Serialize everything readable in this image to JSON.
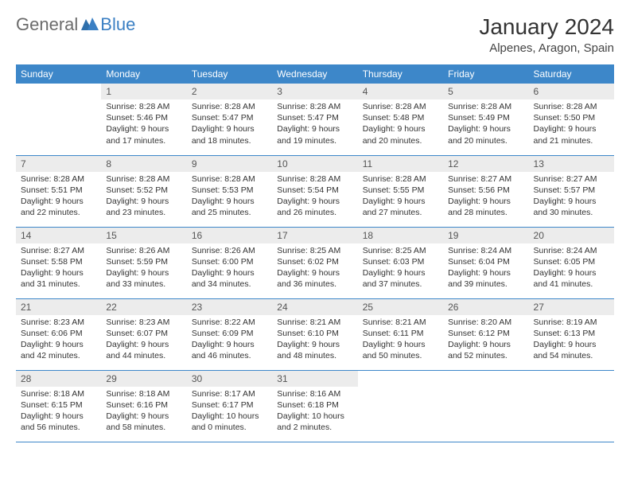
{
  "logo": {
    "part1": "General",
    "part2": "Blue"
  },
  "title": "January 2024",
  "location": "Alpenes, Aragon, Spain",
  "colors": {
    "header_bg": "#3d87c9",
    "header_text": "#ffffff",
    "daynum_bg": "#ececec",
    "border": "#3d87c9",
    "logo_gray": "#6b6b6b",
    "logo_blue": "#3a7fc3"
  },
  "weekdays": [
    "Sunday",
    "Monday",
    "Tuesday",
    "Wednesday",
    "Thursday",
    "Friday",
    "Saturday"
  ],
  "weeks": [
    [
      {
        "num": "",
        "lines": [
          "",
          "",
          "",
          ""
        ]
      },
      {
        "num": "1",
        "lines": [
          "Sunrise: 8:28 AM",
          "Sunset: 5:46 PM",
          "Daylight: 9 hours",
          "and 17 minutes."
        ]
      },
      {
        "num": "2",
        "lines": [
          "Sunrise: 8:28 AM",
          "Sunset: 5:47 PM",
          "Daylight: 9 hours",
          "and 18 minutes."
        ]
      },
      {
        "num": "3",
        "lines": [
          "Sunrise: 8:28 AM",
          "Sunset: 5:47 PM",
          "Daylight: 9 hours",
          "and 19 minutes."
        ]
      },
      {
        "num": "4",
        "lines": [
          "Sunrise: 8:28 AM",
          "Sunset: 5:48 PM",
          "Daylight: 9 hours",
          "and 20 minutes."
        ]
      },
      {
        "num": "5",
        "lines": [
          "Sunrise: 8:28 AM",
          "Sunset: 5:49 PM",
          "Daylight: 9 hours",
          "and 20 minutes."
        ]
      },
      {
        "num": "6",
        "lines": [
          "Sunrise: 8:28 AM",
          "Sunset: 5:50 PM",
          "Daylight: 9 hours",
          "and 21 minutes."
        ]
      }
    ],
    [
      {
        "num": "7",
        "lines": [
          "Sunrise: 8:28 AM",
          "Sunset: 5:51 PM",
          "Daylight: 9 hours",
          "and 22 minutes."
        ]
      },
      {
        "num": "8",
        "lines": [
          "Sunrise: 8:28 AM",
          "Sunset: 5:52 PM",
          "Daylight: 9 hours",
          "and 23 minutes."
        ]
      },
      {
        "num": "9",
        "lines": [
          "Sunrise: 8:28 AM",
          "Sunset: 5:53 PM",
          "Daylight: 9 hours",
          "and 25 minutes."
        ]
      },
      {
        "num": "10",
        "lines": [
          "Sunrise: 8:28 AM",
          "Sunset: 5:54 PM",
          "Daylight: 9 hours",
          "and 26 minutes."
        ]
      },
      {
        "num": "11",
        "lines": [
          "Sunrise: 8:28 AM",
          "Sunset: 5:55 PM",
          "Daylight: 9 hours",
          "and 27 minutes."
        ]
      },
      {
        "num": "12",
        "lines": [
          "Sunrise: 8:27 AM",
          "Sunset: 5:56 PM",
          "Daylight: 9 hours",
          "and 28 minutes."
        ]
      },
      {
        "num": "13",
        "lines": [
          "Sunrise: 8:27 AM",
          "Sunset: 5:57 PM",
          "Daylight: 9 hours",
          "and 30 minutes."
        ]
      }
    ],
    [
      {
        "num": "14",
        "lines": [
          "Sunrise: 8:27 AM",
          "Sunset: 5:58 PM",
          "Daylight: 9 hours",
          "and 31 minutes."
        ]
      },
      {
        "num": "15",
        "lines": [
          "Sunrise: 8:26 AM",
          "Sunset: 5:59 PM",
          "Daylight: 9 hours",
          "and 33 minutes."
        ]
      },
      {
        "num": "16",
        "lines": [
          "Sunrise: 8:26 AM",
          "Sunset: 6:00 PM",
          "Daylight: 9 hours",
          "and 34 minutes."
        ]
      },
      {
        "num": "17",
        "lines": [
          "Sunrise: 8:25 AM",
          "Sunset: 6:02 PM",
          "Daylight: 9 hours",
          "and 36 minutes."
        ]
      },
      {
        "num": "18",
        "lines": [
          "Sunrise: 8:25 AM",
          "Sunset: 6:03 PM",
          "Daylight: 9 hours",
          "and 37 minutes."
        ]
      },
      {
        "num": "19",
        "lines": [
          "Sunrise: 8:24 AM",
          "Sunset: 6:04 PM",
          "Daylight: 9 hours",
          "and 39 minutes."
        ]
      },
      {
        "num": "20",
        "lines": [
          "Sunrise: 8:24 AM",
          "Sunset: 6:05 PM",
          "Daylight: 9 hours",
          "and 41 minutes."
        ]
      }
    ],
    [
      {
        "num": "21",
        "lines": [
          "Sunrise: 8:23 AM",
          "Sunset: 6:06 PM",
          "Daylight: 9 hours",
          "and 42 minutes."
        ]
      },
      {
        "num": "22",
        "lines": [
          "Sunrise: 8:23 AM",
          "Sunset: 6:07 PM",
          "Daylight: 9 hours",
          "and 44 minutes."
        ]
      },
      {
        "num": "23",
        "lines": [
          "Sunrise: 8:22 AM",
          "Sunset: 6:09 PM",
          "Daylight: 9 hours",
          "and 46 minutes."
        ]
      },
      {
        "num": "24",
        "lines": [
          "Sunrise: 8:21 AM",
          "Sunset: 6:10 PM",
          "Daylight: 9 hours",
          "and 48 minutes."
        ]
      },
      {
        "num": "25",
        "lines": [
          "Sunrise: 8:21 AM",
          "Sunset: 6:11 PM",
          "Daylight: 9 hours",
          "and 50 minutes."
        ]
      },
      {
        "num": "26",
        "lines": [
          "Sunrise: 8:20 AM",
          "Sunset: 6:12 PM",
          "Daylight: 9 hours",
          "and 52 minutes."
        ]
      },
      {
        "num": "27",
        "lines": [
          "Sunrise: 8:19 AM",
          "Sunset: 6:13 PM",
          "Daylight: 9 hours",
          "and 54 minutes."
        ]
      }
    ],
    [
      {
        "num": "28",
        "lines": [
          "Sunrise: 8:18 AM",
          "Sunset: 6:15 PM",
          "Daylight: 9 hours",
          "and 56 minutes."
        ]
      },
      {
        "num": "29",
        "lines": [
          "Sunrise: 8:18 AM",
          "Sunset: 6:16 PM",
          "Daylight: 9 hours",
          "and 58 minutes."
        ]
      },
      {
        "num": "30",
        "lines": [
          "Sunrise: 8:17 AM",
          "Sunset: 6:17 PM",
          "Daylight: 10 hours",
          "and 0 minutes."
        ]
      },
      {
        "num": "31",
        "lines": [
          "Sunrise: 8:16 AM",
          "Sunset: 6:18 PM",
          "Daylight: 10 hours",
          "and 2 minutes."
        ]
      },
      {
        "num": "",
        "lines": [
          "",
          "",
          "",
          ""
        ]
      },
      {
        "num": "",
        "lines": [
          "",
          "",
          "",
          ""
        ]
      },
      {
        "num": "",
        "lines": [
          "",
          "",
          "",
          ""
        ]
      }
    ]
  ]
}
